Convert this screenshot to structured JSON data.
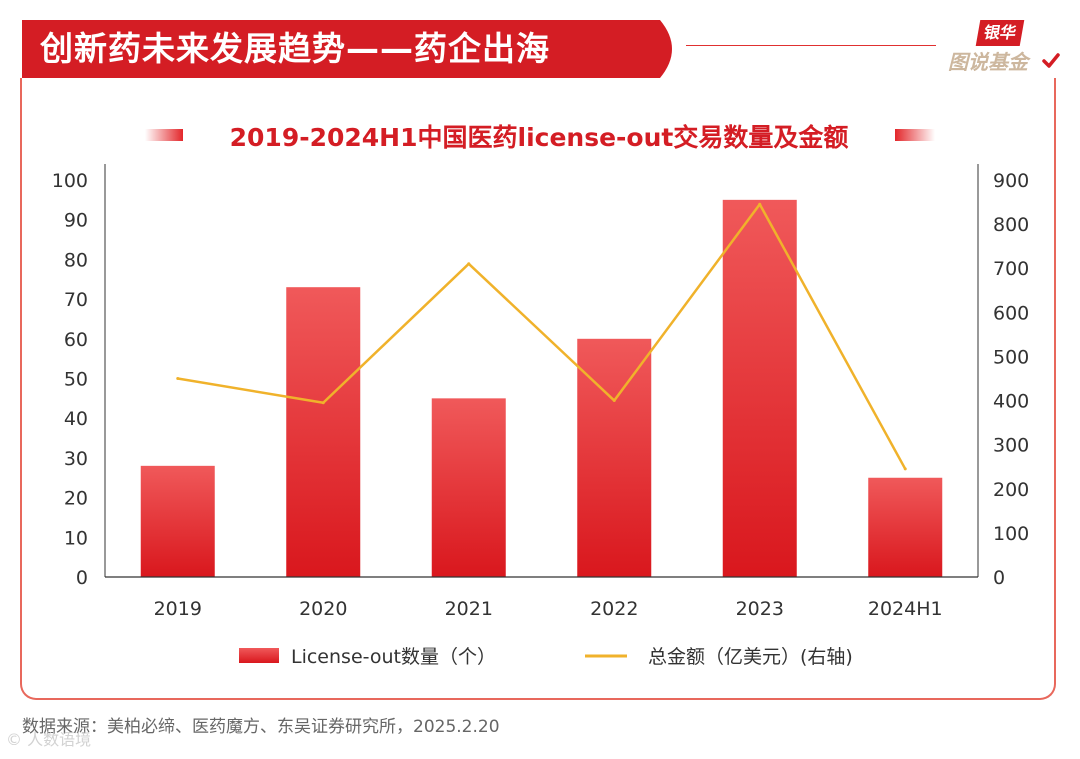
{
  "header": {
    "title": "创新药未来发展趋势——药企出海",
    "accent_color": "#d41d24"
  },
  "logo": {
    "top": "银华",
    "bottom": "图说基金",
    "icon": "check-icon"
  },
  "chart_data": {
    "type": "bar",
    "title": "2019-2024H1中国医药license-out交易数量及金额",
    "categories": [
      "2019",
      "2020",
      "2021",
      "2022",
      "2023",
      "2024H1"
    ],
    "series": [
      {
        "name": "License-out数量（个）",
        "type": "bar",
        "axis": "left",
        "values": [
          28,
          73,
          45,
          60,
          95,
          25
        ],
        "color": "#e3262a"
      },
      {
        "name": "总金额（亿美元）(右轴)",
        "type": "line",
        "axis": "right",
        "values": [
          450,
          395,
          710,
          400,
          845,
          245
        ],
        "color": "#f0b22b"
      }
    ],
    "y_left": {
      "min": 0,
      "max": 100,
      "ticks": [
        0,
        10,
        20,
        30,
        40,
        50,
        60,
        70,
        80,
        90,
        100
      ]
    },
    "y_right": {
      "min": 0,
      "max": 900,
      "ticks": [
        0,
        100,
        200,
        300,
        400,
        500,
        600,
        700,
        800,
        900
      ]
    },
    "xlabel": "",
    "ylabel": "",
    "legend": "bottom",
    "grid": false
  },
  "footer": {
    "source": "数据来源：美柏必缔、医药魔方、东吴证券研究所，2025.2.20",
    "watermark": "© 人数语境"
  }
}
